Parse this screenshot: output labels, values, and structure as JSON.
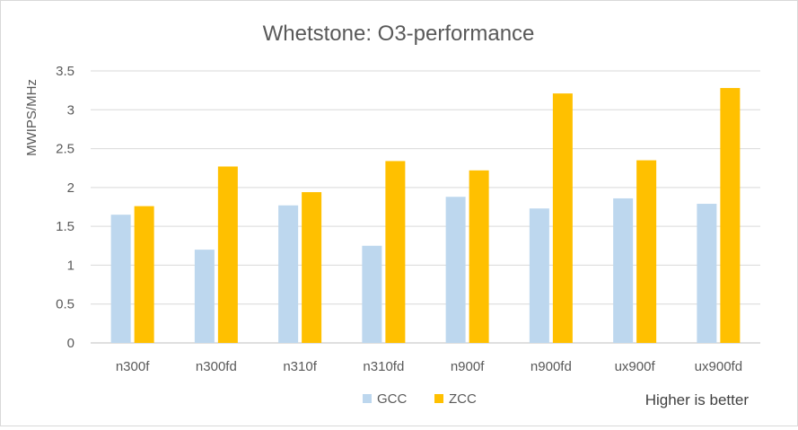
{
  "chart_data": {
    "type": "bar",
    "title": "Whetstone: O3-performance",
    "xlabel": "",
    "ylabel": "MWIPS/MHz",
    "ylim": [
      0,
      3.5
    ],
    "yticks": [
      0,
      0.5,
      1,
      1.5,
      2,
      2.5,
      3,
      3.5
    ],
    "ytick_labels": [
      "0",
      "0.5",
      "1",
      "1.5",
      "2",
      "2.5",
      "3",
      "3.5"
    ],
    "grid": true,
    "legend_position": "bottom",
    "categories": [
      "n300f",
      "n300fd",
      "n310f",
      "n310fd",
      "n900f",
      "n900fd",
      "ux900f",
      "ux900fd"
    ],
    "series": [
      {
        "name": "GCC",
        "color": "#bdd7ee",
        "values": [
          1.65,
          1.2,
          1.77,
          1.25,
          1.88,
          1.73,
          1.86,
          1.79
        ]
      },
      {
        "name": "ZCC",
        "color": "#ffc000",
        "values": [
          1.76,
          2.27,
          1.94,
          2.34,
          2.22,
          3.21,
          2.35,
          3.28
        ]
      }
    ],
    "annotation": "Higher is better"
  }
}
